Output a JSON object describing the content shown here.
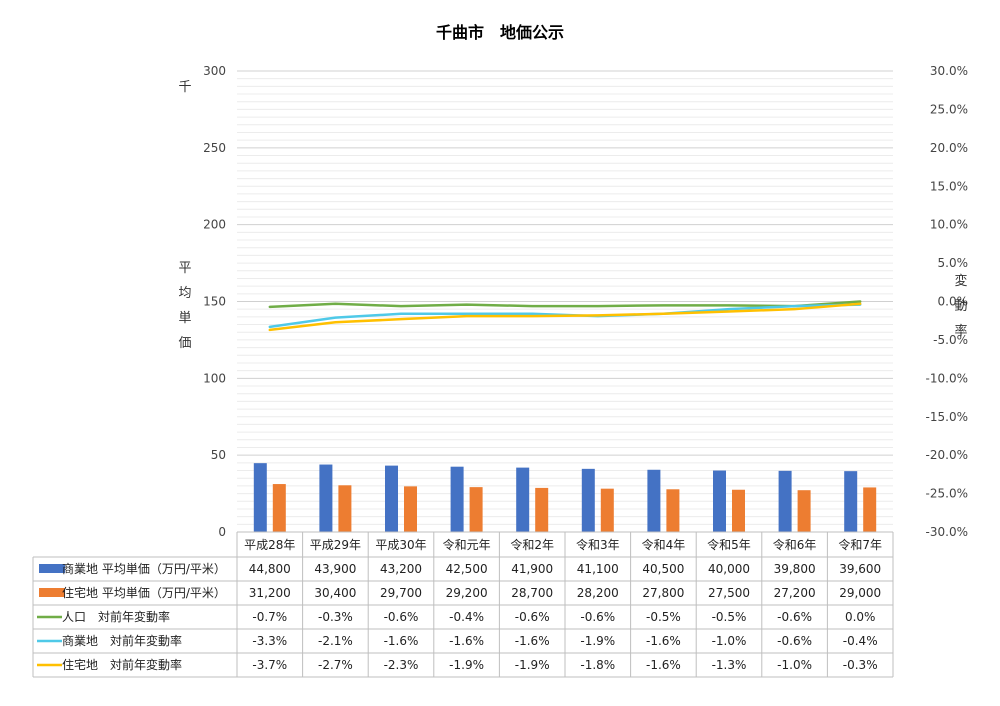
{
  "chart_data": {
    "type": "bar",
    "title": "千曲市　地価公示",
    "categories": [
      "平成28年",
      "平成29年",
      "平成30年",
      "令和元年",
      "令和2年",
      "令和3年",
      "令和4年",
      "令和5年",
      "令和6年",
      "令和7年"
    ],
    "y_left": {
      "label_chars": [
        "平",
        "均",
        "単",
        "価"
      ],
      "unit": "千",
      "ylim": [
        0,
        300
      ],
      "ticks": [
        0,
        50,
        100,
        150,
        200,
        250,
        300
      ]
    },
    "y_right": {
      "label_chars": [
        "変",
        "動",
        "率"
      ],
      "ylim": [
        -30,
        30
      ],
      "ticks": [
        -30,
        -25,
        -20,
        -15,
        -10,
        -5,
        0,
        5,
        10,
        15,
        20,
        25,
        30
      ]
    },
    "series": [
      {
        "name": "商業地 平均単価（万円/平米）",
        "kind": "bar",
        "axis": "left",
        "color": "#4472C4",
        "values": [
          44800,
          43900,
          43200,
          42500,
          41900,
          41100,
          40500,
          40000,
          39800,
          39600
        ],
        "display": [
          "44,800",
          "43,900",
          "43,200",
          "42,500",
          "41,900",
          "41,100",
          "40,500",
          "40,000",
          "39,800",
          "39,600"
        ]
      },
      {
        "name": "住宅地 平均単価（万円/平米）",
        "kind": "bar",
        "axis": "left",
        "color": "#ED7D31",
        "values": [
          31200,
          30400,
          29700,
          29200,
          28700,
          28200,
          27800,
          27500,
          27200,
          29000
        ],
        "display": [
          "31,200",
          "30,400",
          "29,700",
          "29,200",
          "28,700",
          "28,200",
          "27,800",
          "27,500",
          "27,200",
          "29,000"
        ]
      },
      {
        "name": "人口　対前年変動率",
        "kind": "line",
        "axis": "right",
        "color": "#70AD47",
        "values": [
          -0.7,
          -0.3,
          -0.6,
          -0.4,
          -0.6,
          -0.6,
          -0.5,
          -0.5,
          -0.6,
          0.0
        ],
        "display": [
          "-0.7%",
          "-0.3%",
          "-0.6%",
          "-0.4%",
          "-0.6%",
          "-0.6%",
          "-0.5%",
          "-0.5%",
          "-0.6%",
          "0.0%"
        ]
      },
      {
        "name": "商業地　対前年変動率",
        "kind": "line",
        "axis": "right",
        "color": "#4FC9E8",
        "values": [
          -3.3,
          -2.1,
          -1.6,
          -1.6,
          -1.6,
          -1.9,
          -1.6,
          -1.0,
          -0.6,
          -0.4
        ],
        "display": [
          "-3.3%",
          "-2.1%",
          "-1.6%",
          "-1.6%",
          "-1.6%",
          "-1.9%",
          "-1.6%",
          "-1.0%",
          "-0.6%",
          "-0.4%"
        ]
      },
      {
        "name": "住宅地　対前年変動率",
        "kind": "line",
        "axis": "right",
        "color": "#FFC000",
        "values": [
          -3.7,
          -2.7,
          -2.3,
          -1.9,
          -1.9,
          -1.8,
          -1.6,
          -1.3,
          -1.0,
          -0.3
        ],
        "display": [
          "-3.7%",
          "-2.7%",
          "-2.3%",
          "-1.9%",
          "-1.9%",
          "-1.8%",
          "-1.6%",
          "-1.3%",
          "-1.0%",
          "-0.3%"
        ]
      }
    ],
    "legend": "data-table",
    "grid": true
  }
}
